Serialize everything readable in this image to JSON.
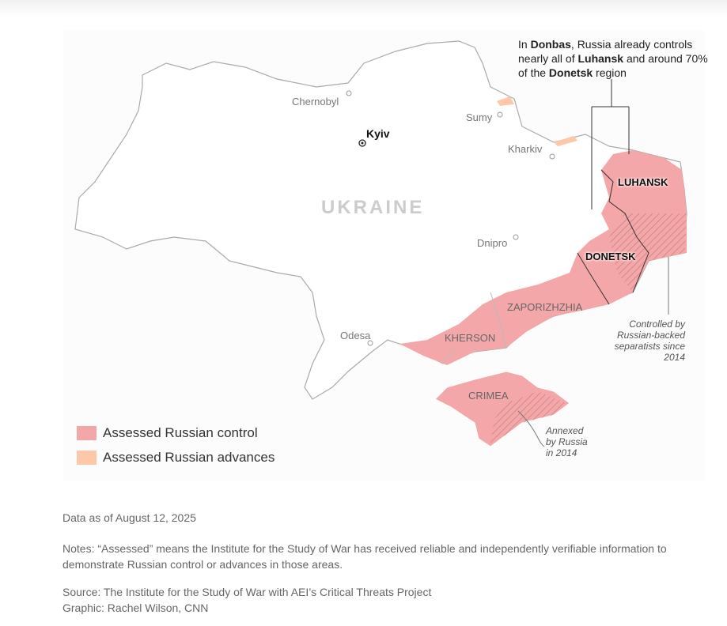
{
  "map": {
    "country_label": "UKRAINE",
    "capital": "Kyiv",
    "cities": [
      "Chernobyl",
      "Sumy",
      "Kharkiv",
      "Dnipro",
      "Odesa"
    ],
    "regions": [
      "LUHANSK",
      "DONETSK",
      "ZAPORIZHZHIA",
      "KHERSON",
      "CRIMEA"
    ],
    "donbas_note": [
      "In ",
      "Donbas",
      ", Russia already controls nearly all of ",
      "Luhansk",
      " and around 70% of the ",
      "Donetsk",
      " region"
    ],
    "separatists_note": "Controlled by Russian-backed separatists since 2014",
    "crimea_note": "Annexed by Russia in 2014"
  },
  "legend": [
    {
      "label": "Assessed Russian control",
      "color": "#f4a7a8"
    },
    {
      "label": "Assessed Russian advances",
      "color": "#fcc8a9"
    }
  ],
  "footer": {
    "date": "Data as of August 12, 2025",
    "notes": "Notes: “Assessed” means the Institute for the Study of War has received reliable and independently verifiable information to demonstrate Russian control or advances in those areas.",
    "source": "Source: The Institute for the Study of War with AEI’s Critical Threats Project",
    "graphic": "Graphic: Rachel Wilson, CNN"
  }
}
